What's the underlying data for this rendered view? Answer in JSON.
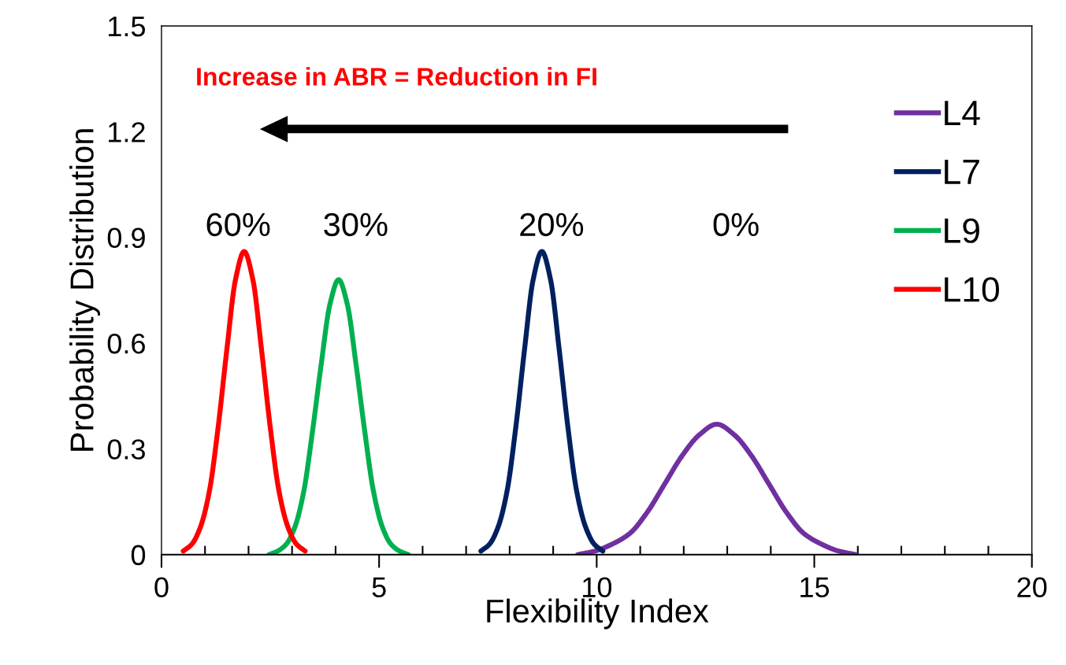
{
  "chart_data": {
    "type": "line",
    "xlabel": "Flexibility Index",
    "ylabel": "Probability Distribution",
    "xlim": [
      0,
      20
    ],
    "xticks": [
      0,
      5,
      10,
      15,
      20
    ],
    "ylim": [
      0,
      1.5
    ],
    "yticks": [
      {
        "value": 0,
        "label": "0"
      },
      0.3,
      0.6,
      0.9,
      1.2,
      1.5
    ],
    "grid": false,
    "legend": "right",
    "marker": "none",
    "line_style": "solid",
    "series": [
      {
        "name": "L4",
        "color": "#7030a0",
        "x": [
          9.56,
          9.96,
          10.36,
          10.76,
          11.16,
          11.56,
          11.96,
          12.36,
          12.76,
          13.16,
          13.56,
          13.96,
          14.36,
          14.76,
          15.16,
          15.56,
          15.96
        ],
        "values": [
          0.0,
          0.01,
          0.03,
          0.06,
          0.12,
          0.2,
          0.28,
          0.34,
          0.37,
          0.34,
          0.28,
          0.2,
          0.12,
          0.06,
          0.03,
          0.01,
          0.0
        ]
      },
      {
        "name": "L7",
        "color": "#002060",
        "x": [
          7.34,
          7.54,
          7.74,
          7.94,
          8.14,
          8.34,
          8.54,
          8.74,
          8.94,
          9.14,
          9.34,
          9.54,
          9.74,
          9.94,
          10.14
        ],
        "values": [
          0.01,
          0.03,
          0.08,
          0.18,
          0.36,
          0.58,
          0.78,
          0.86,
          0.78,
          0.58,
          0.36,
          0.18,
          0.08,
          0.03,
          0.01
        ]
      },
      {
        "name": "L9",
        "color": "#00b050",
        "x": [
          2.47,
          2.67,
          2.87,
          3.07,
          3.27,
          3.47,
          3.67,
          3.87,
          4.07,
          4.27,
          4.47,
          4.67,
          4.87,
          5.07,
          5.27,
          5.47,
          5.67
        ],
        "values": [
          0.0,
          0.01,
          0.03,
          0.08,
          0.18,
          0.35,
          0.54,
          0.71,
          0.78,
          0.71,
          0.54,
          0.35,
          0.18,
          0.08,
          0.03,
          0.01,
          0.0
        ]
      },
      {
        "name": "L10",
        "color": "#ff0000",
        "x": [
          0.5,
          0.7,
          0.9,
          1.1,
          1.3,
          1.5,
          1.7,
          1.9,
          2.1,
          2.3,
          2.5,
          2.7,
          2.9,
          3.1,
          3.3
        ],
        "values": [
          0.01,
          0.03,
          0.08,
          0.18,
          0.36,
          0.58,
          0.78,
          0.86,
          0.78,
          0.58,
          0.36,
          0.18,
          0.08,
          0.03,
          0.01
        ]
      }
    ],
    "annotations": [
      "60%",
      "30%",
      "20%",
      "0%",
      "Increase in ABR = Reduction in FI"
    ]
  }
}
